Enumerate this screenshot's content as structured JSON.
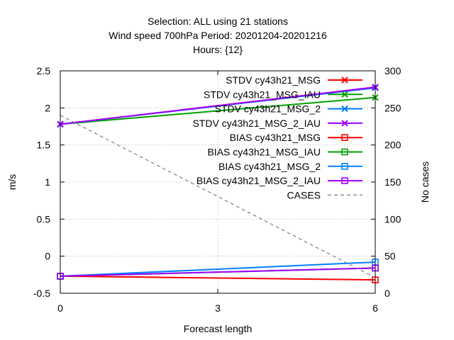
{
  "chart_data": {
    "type": "line",
    "title_lines": [
      "Selection: ALL using    21 stations",
      "Wind speed 700hPa   Period: 20201204-20201216",
      "Hours: {12}"
    ],
    "xlabel": "Forecast length",
    "ylabel": "m/s",
    "y2label": "No cases",
    "xlim": [
      0,
      6
    ],
    "ylim": [
      -0.5,
      2.5
    ],
    "y2lim": [
      0,
      300
    ],
    "xticks": [
      0,
      3,
      6
    ],
    "yticks": [
      -0.5,
      0,
      0.5,
      1,
      1.5,
      2,
      2.5
    ],
    "y2ticks": [
      0,
      50,
      100,
      150,
      200,
      250,
      300
    ],
    "grid": true,
    "legend_position": "top-right",
    "x": [
      0,
      6
    ],
    "series": [
      {
        "name": "STDV cy43h21_MSG",
        "axis": "y",
        "marker": "x",
        "color": "#ff0000",
        "values": [
          1.78,
          2.28
        ]
      },
      {
        "name": "STDV cy43h21_MSG_IAU",
        "axis": "y",
        "marker": "x",
        "color": "#00a000",
        "values": [
          1.78,
          2.14
        ]
      },
      {
        "name": "STDV cy43h21_MSG_2",
        "axis": "y",
        "marker": "x",
        "color": "#0080ff",
        "values": [
          1.78,
          2.27
        ]
      },
      {
        "name": "STDV cy43h21_MSG_2_IAU",
        "axis": "y",
        "marker": "x",
        "color": "#a000ff",
        "values": [
          1.78,
          2.28
        ]
      },
      {
        "name": "BIAS cy43h21_MSG",
        "axis": "y",
        "marker": "square",
        "color": "#ff0000",
        "values": [
          -0.27,
          -0.32
        ]
      },
      {
        "name": "BIAS cy43h21_MSG_IAU",
        "axis": "y",
        "marker": "square",
        "color": "#00a000",
        "values": [
          -0.27,
          -0.16
        ]
      },
      {
        "name": "BIAS cy43h21_MSG_2",
        "axis": "y",
        "marker": "square",
        "color": "#0080ff",
        "values": [
          -0.27,
          -0.08
        ]
      },
      {
        "name": "BIAS cy43h21_MSG_2_IAU",
        "axis": "y",
        "marker": "square",
        "color": "#a000ff",
        "values": [
          -0.27,
          -0.16
        ]
      },
      {
        "name": "CASES",
        "axis": "y2",
        "marker": "none",
        "dashed": true,
        "color": "#808080",
        "values": [
          240,
          21
        ]
      }
    ]
  }
}
